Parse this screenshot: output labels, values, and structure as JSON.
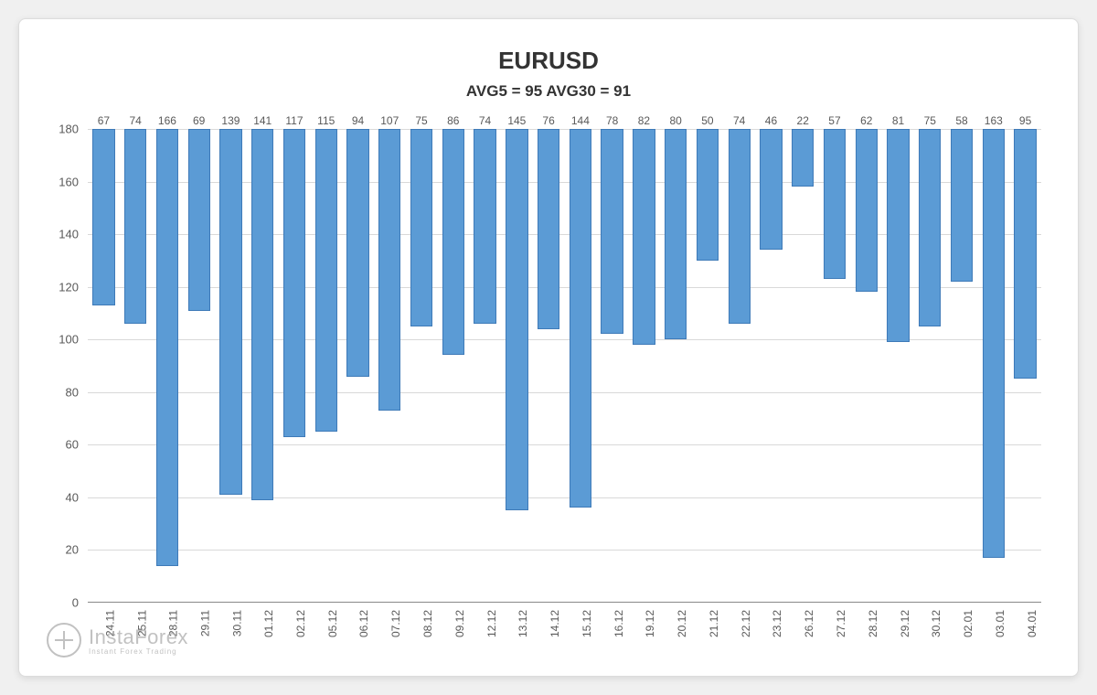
{
  "chart": {
    "type": "bar",
    "title": "EURUSD",
    "subtitle": "AVG5 = 95 AVG30 = 91",
    "title_fontsize": 26,
    "subtitle_fontsize": 17,
    "title_color": "#333333",
    "categories": [
      "24.11",
      "25.11",
      "28.11",
      "29.11",
      "30.11",
      "01.12",
      "02.12",
      "05.12",
      "06.12",
      "07.12",
      "08.12",
      "09.12",
      "12.12",
      "13.12",
      "14.12",
      "15.12",
      "16.12",
      "19.12",
      "20.12",
      "21.12",
      "22.12",
      "23.12",
      "26.12",
      "27.12",
      "28.12",
      "29.12",
      "30.12",
      "02.01",
      "03.01",
      "04.01"
    ],
    "values": [
      67,
      74,
      166,
      69,
      139,
      141,
      117,
      115,
      94,
      107,
      75,
      86,
      74,
      145,
      76,
      144,
      78,
      82,
      80,
      50,
      74,
      46,
      22,
      57,
      62,
      81,
      75,
      58,
      163,
      95
    ],
    "bar_color": "#5b9bd5",
    "bar_border_color": "#3e7ab8",
    "bar_width": 0.7,
    "ylim": [
      0,
      180
    ],
    "ytick_step": 20,
    "yticks": [
      0,
      20,
      40,
      60,
      80,
      100,
      120,
      140,
      160,
      180
    ],
    "grid_color": "#d9d9d9",
    "axis_color": "#888888",
    "label_color": "#595959",
    "label_fontsize": 13,
    "value_label_fontsize": 12,
    "xlabel_fontsize": 12,
    "xlabel_rotation": -90,
    "background_color": "#ffffff",
    "card_border_color": "#dcdcdc",
    "page_background": "#f0f0f0"
  },
  "watermark": {
    "brand": "InstaForex",
    "tagline": "Instant Forex Trading",
    "color": "#a8a8a8",
    "opacity": 0.7,
    "icon": "target-crosshair-icon"
  }
}
